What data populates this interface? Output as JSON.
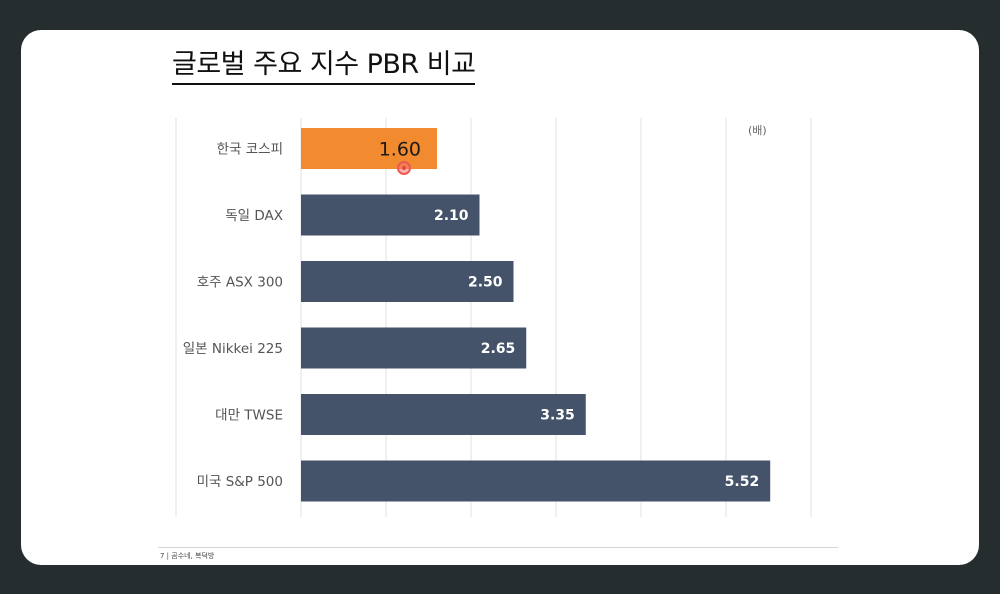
{
  "slide": {
    "title": "글로벌 주요 지수 PBR 비교",
    "unit": "(배)",
    "footer": "7 | 곰수네, 복덕방"
  },
  "colors": {
    "highlight": "#f28a30",
    "bar": "#44526a",
    "highlight_label": "#1a1a1a",
    "bar_label": "#ffffff",
    "grid": "#e2e2e2",
    "pointer": "#ee5a52"
  },
  "chart_data": {
    "type": "bar",
    "orientation": "horizontal",
    "title": "글로벌 주요 지수 PBR 비교",
    "unit_label": "(배)",
    "categories": [
      "한국 코스피",
      "독일 DAX",
      "호주 ASX 300",
      "일본 Nikkei 225",
      "대만 TWSE",
      "미국 S&P 500"
    ],
    "values": [
      1.6,
      2.1,
      2.5,
      2.65,
      3.35,
      5.52
    ],
    "labels": [
      "1.60",
      "2.10",
      "2.50",
      "2.65",
      "3.35",
      "5.52"
    ],
    "highlight_index": 0,
    "xlim": [
      0,
      6
    ],
    "grid": true,
    "legend": "none"
  }
}
